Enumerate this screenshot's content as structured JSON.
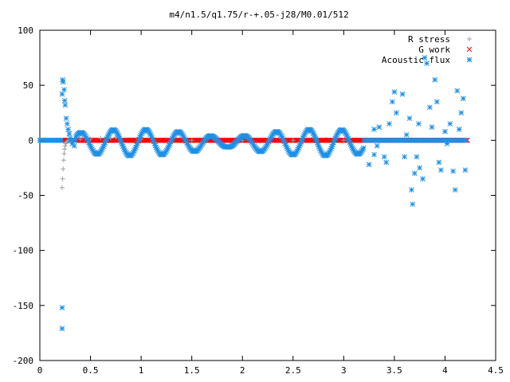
{
  "chart_data": {
    "type": "scatter",
    "title": "m4/n1.5/q1.75/r-+.05-j28/M0.01/512",
    "xlabel": "",
    "ylabel": "",
    "xlim": [
      0,
      4.5
    ],
    "ylim": [
      -200,
      100
    ],
    "x_ticks": [
      "0",
      "0.5",
      "1",
      "1.5",
      "2",
      "2.5",
      "3",
      "3.5",
      "4",
      "4.5"
    ],
    "y_ticks": [
      "100",
      "50",
      "0",
      "-50",
      "-100",
      "-150",
      "-200"
    ],
    "grid": false,
    "legend_position": "top-right",
    "series": [
      {
        "name": "R stress",
        "marker": "plus",
        "color": "#a0a0a0",
        "x": [
          0.22,
          0.225,
          0.23,
          0.235,
          0.24,
          0.245,
          0.25,
          0.255,
          0.26,
          0.27,
          0.28,
          0.29,
          0.3,
          0.35,
          0.4,
          0.5,
          0.6,
          0.7,
          0.75,
          0.8,
          1.0,
          1.5,
          2.0,
          2.5,
          3.0,
          3.5,
          4.0,
          4.2
        ],
        "y": [
          -43,
          -35,
          -26,
          -18,
          -12,
          -8,
          -5,
          -3,
          -2,
          -1,
          -0.5,
          -0.3,
          0,
          0,
          1,
          1,
          2,
          2,
          3,
          2,
          1,
          0,
          0,
          0,
          0,
          0,
          0,
          0
        ]
      },
      {
        "name": "G work",
        "marker": "cross",
        "color": "#ff0000",
        "x": [
          0.22,
          0.3,
          0.4,
          0.5,
          0.6,
          0.7,
          0.8,
          0.9,
          1.0,
          1.1,
          1.2,
          1.3,
          1.4,
          1.5,
          1.6,
          1.7,
          1.8,
          1.9,
          2.0,
          2.1,
          2.2,
          2.3,
          2.4,
          2.5,
          2.6,
          2.7,
          2.8,
          2.9,
          3.0,
          3.1,
          3.2,
          3.3,
          3.4,
          3.5,
          3.6,
          3.7,
          3.8,
          3.9,
          4.0,
          4.1,
          4.22
        ],
        "y": [
          0,
          0,
          0,
          0,
          0,
          0,
          0,
          0,
          0,
          0,
          0,
          0,
          0,
          0,
          0,
          0,
          0,
          0,
          0,
          0,
          0,
          0,
          0,
          0,
          0,
          0,
          0,
          0,
          0,
          0,
          0,
          0,
          0,
          0,
          0,
          0,
          0,
          0,
          0,
          0,
          0
        ]
      },
      {
        "name": "Acoustic flux",
        "marker": "star",
        "color": "#1e90e6",
        "x": [
          0.22,
          0.22,
          0.22,
          0.225,
          0.23,
          0.24,
          0.245,
          0.25,
          0.26,
          0.27,
          0.28,
          0.29,
          0.3,
          0.32,
          0.34,
          3.25,
          3.3,
          3.3,
          3.33,
          3.35,
          3.38,
          3.4,
          3.42,
          3.45,
          3.48,
          3.5,
          3.52,
          3.55,
          3.58,
          3.6,
          3.62,
          3.65,
          3.67,
          3.68,
          3.7,
          3.72,
          3.74,
          3.75,
          3.78,
          3.8,
          3.82,
          3.85,
          3.87,
          3.9,
          3.92,
          3.94,
          3.96,
          4.0,
          4.02,
          4.05,
          4.08,
          4.1,
          4.12,
          4.14,
          4.16,
          4.18,
          4.2
        ],
        "y": [
          -152,
          -171,
          42,
          55,
          53,
          46,
          36,
          32,
          20,
          15,
          10,
          6,
          2,
          -3,
          -5,
          -22,
          10,
          -13,
          -5,
          12,
          0,
          -15,
          -20,
          15,
          35,
          44,
          25,
          0,
          42,
          -15,
          5,
          20,
          -45,
          -58,
          -30,
          -15,
          15,
          -25,
          -35,
          75,
          70,
          30,
          12,
          55,
          35,
          -20,
          -27,
          8,
          -3,
          15,
          -28,
          -45,
          45,
          10,
          25,
          38,
          -27
        ]
      }
    ]
  }
}
